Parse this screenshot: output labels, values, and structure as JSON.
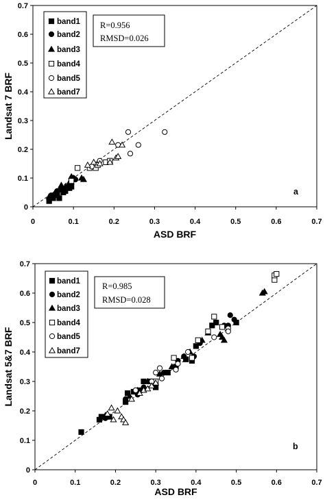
{
  "chart_data": [
    {
      "type": "scatter",
      "panel_label": "a",
      "xlabel": "ASD BRF",
      "ylabel": "Landsat 7 BRF",
      "xlim": [
        0,
        0.7
      ],
      "ylim": [
        0,
        0.7
      ],
      "xticks": [
        "0",
        "0.1",
        "0.2",
        "0.3",
        "0.4",
        "0.5",
        "0.6",
        "0.7"
      ],
      "yticks": [
        "0",
        "0.1",
        "0.2",
        "0.3",
        "0.4",
        "0.5",
        "0.6",
        "0.7"
      ],
      "stats": [
        "R=0.956",
        "RMSD=0.026"
      ],
      "legend_position": "top-left",
      "reference_line": "1:1 dashed",
      "series": [
        {
          "name": "band1",
          "marker": "square-filled",
          "points": [
            [
              0.04,
              0.02
            ],
            [
              0.045,
              0.035
            ],
            [
              0.05,
              0.03
            ],
            [
              0.055,
              0.04
            ],
            [
              0.06,
              0.045
            ],
            [
              0.065,
              0.03
            ],
            [
              0.07,
              0.06
            ],
            [
              0.075,
              0.05
            ],
            [
              0.08,
              0.055
            ],
            [
              0.09,
              0.065
            ],
            [
              0.095,
              0.07
            ]
          ]
        },
        {
          "name": "band2",
          "marker": "circle-filled",
          "points": [
            [
              0.045,
              0.04
            ],
            [
              0.06,
              0.055
            ],
            [
              0.075,
              0.06
            ],
            [
              0.085,
              0.07
            ],
            [
              0.095,
              0.08
            ],
            [
              0.1,
              0.1
            ],
            [
              0.105,
              0.095
            ]
          ]
        },
        {
          "name": "band3",
          "marker": "triangle-filled",
          "points": [
            [
              0.04,
              0.035
            ],
            [
              0.055,
              0.05
            ],
            [
              0.065,
              0.06
            ],
            [
              0.07,
              0.075
            ],
            [
              0.08,
              0.07
            ],
            [
              0.09,
              0.085
            ],
            [
              0.095,
              0.105
            ],
            [
              0.1,
              0.1
            ],
            [
              0.12,
              0.1
            ],
            [
              0.125,
              0.095
            ]
          ]
        },
        {
          "name": "band4",
          "marker": "square-open",
          "points": [
            [
              0.095,
              0.09
            ],
            [
              0.11,
              0.135
            ],
            [
              0.14,
              0.135
            ],
            [
              0.155,
              0.135
            ],
            [
              0.16,
              0.145
            ],
            [
              0.18,
              0.155
            ],
            [
              0.19,
              0.16
            ]
          ]
        },
        {
          "name": "band5",
          "marker": "circle-open",
          "points": [
            [
              0.145,
              0.14
            ],
            [
              0.165,
              0.16
            ],
            [
              0.21,
              0.215
            ],
            [
              0.235,
              0.26
            ],
            [
              0.24,
              0.185
            ],
            [
              0.26,
              0.215
            ],
            [
              0.325,
              0.26
            ]
          ]
        },
        {
          "name": "band7",
          "marker": "triangle-open",
          "points": [
            [
              0.135,
              0.145
            ],
            [
              0.15,
              0.155
            ],
            [
              0.165,
              0.15
            ],
            [
              0.19,
              0.155
            ],
            [
              0.195,
              0.225
            ],
            [
              0.205,
              0.17
            ],
            [
              0.21,
              0.175
            ],
            [
              0.22,
              0.215
            ]
          ]
        }
      ]
    },
    {
      "type": "scatter",
      "panel_label": "b",
      "xlabel": "ASD BRF",
      "ylabel": "Landsat 5&7 BRF",
      "xlim": [
        0,
        0.7
      ],
      "ylim": [
        0,
        0.7
      ],
      "xticks": [
        "0",
        "0.1",
        "0.2",
        "0.3",
        "0.4",
        "0.5",
        "0.6",
        "0.7"
      ],
      "yticks": [
        "0",
        "0.1",
        "0.2",
        "0.3",
        "0.4",
        "0.5",
        "0.6",
        "0.7"
      ],
      "stats": [
        "R=0.985",
        "RMSD=0.028"
      ],
      "legend_position": "top-left",
      "reference_line": "1:1 dashed",
      "series": [
        {
          "name": "band1",
          "marker": "square-filled",
          "points": [
            [
              0.115,
              0.128
            ],
            [
              0.16,
              0.17
            ],
            [
              0.165,
              0.18
            ],
            [
              0.175,
              0.18
            ],
            [
              0.185,
              0.18
            ],
            [
              0.225,
              0.23
            ],
            [
              0.23,
              0.26
            ],
            [
              0.245,
              0.265
            ],
            [
              0.26,
              0.27
            ],
            [
              0.27,
              0.3
            ],
            [
              0.285,
              0.3
            ],
            [
              0.3,
              0.28
            ],
            [
              0.33,
              0.33
            ],
            [
              0.35,
              0.35
            ],
            [
              0.375,
              0.375
            ],
            [
              0.39,
              0.37
            ],
            [
              0.4,
              0.42
            ],
            [
              0.44,
              0.49
            ],
            [
              0.45,
              0.5
            ],
            [
              0.5,
              0.5
            ]
          ]
        },
        {
          "name": "band2",
          "marker": "circle-filled",
          "points": [
            [
              0.175,
              0.175
            ],
            [
              0.225,
              0.24
            ],
            [
              0.255,
              0.255
            ],
            [
              0.27,
              0.28
            ],
            [
              0.29,
              0.3
            ],
            [
              0.32,
              0.33
            ],
            [
              0.355,
              0.37
            ],
            [
              0.37,
              0.385
            ],
            [
              0.395,
              0.385
            ],
            [
              0.41,
              0.43
            ],
            [
              0.47,
              0.49
            ],
            [
              0.48,
              0.49
            ],
            [
              0.485,
              0.525
            ],
            [
              0.495,
              0.51
            ]
          ]
        },
        {
          "name": "band3",
          "marker": "triangle-filled",
          "points": [
            [
              0.175,
              0.185
            ],
            [
              0.235,
              0.25
            ],
            [
              0.255,
              0.27
            ],
            [
              0.28,
              0.3
            ],
            [
              0.31,
              0.325
            ],
            [
              0.34,
              0.35
            ],
            [
              0.37,
              0.385
            ],
            [
              0.385,
              0.4
            ],
            [
              0.415,
              0.44
            ],
            [
              0.43,
              0.465
            ],
            [
              0.46,
              0.46
            ],
            [
              0.465,
              0.45
            ],
            [
              0.47,
              0.44
            ],
            [
              0.565,
              0.6
            ],
            [
              0.57,
              0.605
            ]
          ]
        },
        {
          "name": "band4",
          "marker": "square-open",
          "points": [
            [
              0.3,
              0.3
            ],
            [
              0.345,
              0.38
            ],
            [
              0.39,
              0.38
            ],
            [
              0.405,
              0.44
            ],
            [
              0.43,
              0.47
            ],
            [
              0.445,
              0.52
            ],
            [
              0.465,
              0.485
            ],
            [
              0.595,
              0.645
            ],
            [
              0.595,
              0.66
            ],
            [
              0.6,
              0.665
            ]
          ]
        },
        {
          "name": "band5",
          "marker": "circle-open",
          "points": [
            [
              0.25,
              0.27
            ],
            [
              0.29,
              0.3
            ],
            [
              0.3,
              0.33
            ],
            [
              0.31,
              0.345
            ],
            [
              0.315,
              0.31
            ],
            [
              0.35,
              0.34
            ],
            [
              0.355,
              0.36
            ],
            [
              0.38,
              0.4
            ],
            [
              0.445,
              0.45
            ],
            [
              0.48,
              0.48
            ],
            [
              0.48,
              0.47
            ]
          ]
        },
        {
          "name": "band7",
          "marker": "triangle-open",
          "points": [
            [
              0.18,
              0.19
            ],
            [
              0.19,
              0.21
            ],
            [
              0.195,
              0.17
            ],
            [
              0.205,
              0.2
            ],
            [
              0.215,
              0.18
            ],
            [
              0.22,
              0.17
            ],
            [
              0.225,
              0.16
            ],
            [
              0.24,
              0.24
            ],
            [
              0.26,
              0.26
            ],
            [
              0.27,
              0.27
            ],
            [
              0.28,
              0.275
            ],
            [
              0.29,
              0.285
            ],
            [
              0.3,
              0.295
            ]
          ]
        }
      ]
    }
  ]
}
